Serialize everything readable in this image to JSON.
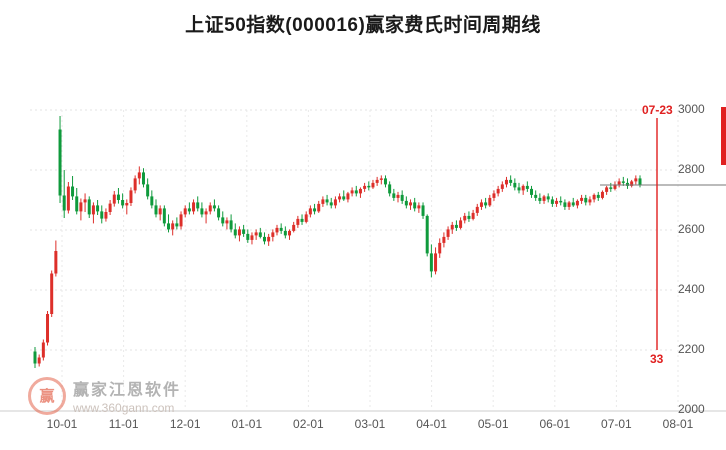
{
  "chart_data": {
    "type": "candlestick",
    "title": "上证50指数(000016)赢家费氏时间周期线",
    "ylim": [
      2000,
      3000
    ],
    "y_ticks": [
      3000,
      2800,
      2600,
      2400,
      2200,
      2000
    ],
    "x_ticks": [
      "10-01",
      "11-01",
      "12-01",
      "01-01",
      "02-01",
      "03-01",
      "04-01",
      "05-01",
      "06-01",
      "07-01",
      "08-01"
    ],
    "grid": "dotted",
    "up_color": "#dd2f2a",
    "down_color": "#0f9a3c",
    "current_price": 2750,
    "price_line_color": "#777777",
    "cycle_line": {
      "date_label": "07-23",
      "count_label": "33",
      "color": "#e02020"
    },
    "candle_format": "open,high,low,close",
    "candles": [
      [
        2195,
        2210,
        2140,
        2155
      ],
      [
        2155,
        2185,
        2145,
        2175
      ],
      [
        2175,
        2235,
        2165,
        2225
      ],
      [
        2225,
        2330,
        2215,
        2320
      ],
      [
        2320,
        2465,
        2310,
        2455
      ],
      [
        2455,
        2565,
        2445,
        2530
      ],
      [
        2935,
        2980,
        2690,
        2715
      ],
      [
        2715,
        2800,
        2640,
        2665
      ],
      [
        2665,
        2760,
        2655,
        2745
      ],
      [
        2745,
        2780,
        2700,
        2712
      ],
      [
        2712,
        2740,
        2652,
        2662
      ],
      [
        2662,
        2705,
        2632,
        2692
      ],
      [
        2692,
        2722,
        2660,
        2702
      ],
      [
        2702,
        2712,
        2640,
        2652
      ],
      [
        2652,
        2692,
        2622,
        2682
      ],
      [
        2682,
        2700,
        2650,
        2662
      ],
      [
        2662,
        2682,
        2622,
        2638
      ],
      [
        2638,
        2672,
        2628,
        2660
      ],
      [
        2660,
        2700,
        2650,
        2688
      ],
      [
        2688,
        2730,
        2678,
        2718
      ],
      [
        2718,
        2740,
        2688,
        2700
      ],
      [
        2700,
        2722,
        2672,
        2682
      ],
      [
        2682,
        2702,
        2652,
        2690
      ],
      [
        2690,
        2742,
        2680,
        2732
      ],
      [
        2732,
        2782,
        2722,
        2772
      ],
      [
        2772,
        2812,
        2752,
        2792
      ],
      [
        2792,
        2806,
        2742,
        2752
      ],
      [
        2752,
        2772,
        2702,
        2712
      ],
      [
        2712,
        2732,
        2672,
        2682
      ],
      [
        2682,
        2702,
        2642,
        2652
      ],
      [
        2652,
        2682,
        2632,
        2672
      ],
      [
        2672,
        2682,
        2612,
        2622
      ],
      [
        2622,
        2652,
        2592,
        2602
      ],
      [
        2602,
        2632,
        2582,
        2622
      ],
      [
        2622,
        2642,
        2602,
        2612
      ],
      [
        2612,
        2662,
        2602,
        2652
      ],
      [
        2652,
        2682,
        2642,
        2672
      ],
      [
        2672,
        2692,
        2652,
        2662
      ],
      [
        2662,
        2702,
        2652,
        2692
      ],
      [
        2692,
        2712,
        2662,
        2672
      ],
      [
        2672,
        2692,
        2642,
        2652
      ],
      [
        2652,
        2672,
        2622,
        2662
      ],
      [
        2662,
        2692,
        2652,
        2682
      ],
      [
        2682,
        2702,
        2662,
        2672
      ],
      [
        2672,
        2682,
        2632,
        2642
      ],
      [
        2642,
        2662,
        2612,
        2622
      ],
      [
        2622,
        2642,
        2602,
        2632
      ],
      [
        2632,
        2652,
        2592,
        2602
      ],
      [
        2602,
        2622,
        2572,
        2582
      ],
      [
        2582,
        2612,
        2562,
        2602
      ],
      [
        2602,
        2617,
        2577,
        2587
      ],
      [
        2587,
        2602,
        2557,
        2567
      ],
      [
        2567,
        2592,
        2552,
        2582
      ],
      [
        2582,
        2602,
        2567,
        2592
      ],
      [
        2592,
        2607,
        2572,
        2577
      ],
      [
        2577,
        2592,
        2552,
        2562
      ],
      [
        2562,
        2587,
        2547,
        2577
      ],
      [
        2577,
        2602,
        2562,
        2592
      ],
      [
        2592,
        2617,
        2582,
        2607
      ],
      [
        2607,
        2622,
        2587,
        2597
      ],
      [
        2597,
        2612,
        2572,
        2582
      ],
      [
        2582,
        2602,
        2567,
        2597
      ],
      [
        2597,
        2627,
        2592,
        2617
      ],
      [
        2617,
        2647,
        2607,
        2637
      ],
      [
        2637,
        2652,
        2617,
        2627
      ],
      [
        2627,
        2662,
        2622,
        2652
      ],
      [
        2652,
        2682,
        2642,
        2672
      ],
      [
        2672,
        2687,
        2652,
        2662
      ],
      [
        2662,
        2697,
        2657,
        2687
      ],
      [
        2687,
        2712,
        2677,
        2702
      ],
      [
        2702,
        2717,
        2682,
        2692
      ],
      [
        2692,
        2707,
        2672,
        2682
      ],
      [
        2682,
        2712,
        2672,
        2702
      ],
      [
        2702,
        2722,
        2692,
        2712
      ],
      [
        2712,
        2732,
        2697,
        2702
      ],
      [
        2702,
        2727,
        2692,
        2722
      ],
      [
        2722,
        2742,
        2712,
        2732
      ],
      [
        2732,
        2747,
        2712,
        2722
      ],
      [
        2722,
        2742,
        2707,
        2737
      ],
      [
        2737,
        2757,
        2727,
        2747
      ],
      [
        2747,
        2762,
        2732,
        2742
      ],
      [
        2742,
        2767,
        2737,
        2757
      ],
      [
        2757,
        2777,
        2747,
        2767
      ],
      [
        2767,
        2782,
        2752,
        2772
      ],
      [
        2772,
        2782,
        2742,
        2752
      ],
      [
        2752,
        2762,
        2712,
        2722
      ],
      [
        2722,
        2737,
        2697,
        2707
      ],
      [
        2707,
        2727,
        2692,
        2717
      ],
      [
        2717,
        2732,
        2687,
        2697
      ],
      [
        2697,
        2712,
        2672,
        2682
      ],
      [
        2682,
        2702,
        2667,
        2692
      ],
      [
        2692,
        2707,
        2662,
        2672
      ],
      [
        2672,
        2692,
        2657,
        2682
      ],
      [
        2682,
        2692,
        2637,
        2647
      ],
      [
        2647,
        2652,
        2512,
        2522
      ],
      [
        2522,
        2552,
        2442,
        2462
      ],
      [
        2462,
        2542,
        2452,
        2522
      ],
      [
        2522,
        2572,
        2507,
        2557
      ],
      [
        2557,
        2592,
        2542,
        2577
      ],
      [
        2577,
        2612,
        2567,
        2602
      ],
      [
        2602,
        2627,
        2587,
        2617
      ],
      [
        2617,
        2632,
        2597,
        2607
      ],
      [
        2607,
        2642,
        2602,
        2632
      ],
      [
        2632,
        2657,
        2622,
        2647
      ],
      [
        2647,
        2662,
        2627,
        2637
      ],
      [
        2637,
        2667,
        2632,
        2657
      ],
      [
        2657,
        2687,
        2647,
        2677
      ],
      [
        2677,
        2702,
        2667,
        2692
      ],
      [
        2692,
        2707,
        2672,
        2682
      ],
      [
        2682,
        2717,
        2677,
        2707
      ],
      [
        2707,
        2732,
        2697,
        2722
      ],
      [
        2722,
        2747,
        2712,
        2737
      ],
      [
        2737,
        2762,
        2727,
        2752
      ],
      [
        2752,
        2777,
        2742,
        2767
      ],
      [
        2767,
        2782,
        2747,
        2757
      ],
      [
        2757,
        2772,
        2732,
        2742
      ],
      [
        2742,
        2757,
        2722,
        2732
      ],
      [
        2732,
        2752,
        2717,
        2747
      ],
      [
        2747,
        2762,
        2727,
        2737
      ],
      [
        2737,
        2747,
        2707,
        2717
      ],
      [
        2717,
        2732,
        2697,
        2707
      ],
      [
        2707,
        2722,
        2687,
        2697
      ],
      [
        2697,
        2717,
        2687,
        2712
      ],
      [
        2712,
        2722,
        2692,
        2702
      ],
      [
        2702,
        2712,
        2677,
        2687
      ],
      [
        2687,
        2707,
        2677,
        2697
      ],
      [
        2697,
        2712,
        2682,
        2692
      ],
      [
        2692,
        2702,
        2667,
        2677
      ],
      [
        2677,
        2697,
        2667,
        2692
      ],
      [
        2692,
        2707,
        2677,
        2682
      ],
      [
        2682,
        2702,
        2672,
        2697
      ],
      [
        2697,
        2717,
        2687,
        2707
      ],
      [
        2707,
        2717,
        2682,
        2692
      ],
      [
        2692,
        2712,
        2682,
        2702
      ],
      [
        2702,
        2722,
        2692,
        2717
      ],
      [
        2717,
        2727,
        2697,
        2707
      ],
      [
        2707,
        2732,
        2702,
        2727
      ],
      [
        2727,
        2747,
        2717,
        2742
      ],
      [
        2742,
        2757,
        2727,
        2737
      ],
      [
        2737,
        2762,
        2732,
        2752
      ],
      [
        2752,
        2772,
        2742,
        2762
      ],
      [
        2762,
        2777,
        2747,
        2757
      ],
      [
        2757,
        2772,
        2737,
        2747
      ],
      [
        2747,
        2767,
        2742,
        2762
      ],
      [
        2762,
        2782,
        2752,
        2772
      ],
      [
        2772,
        2782,
        2742,
        2750
      ]
    ]
  },
  "watermark": {
    "logo_char": "赢",
    "name": "赢家江恩软件",
    "url": "www.360gann.com"
  }
}
